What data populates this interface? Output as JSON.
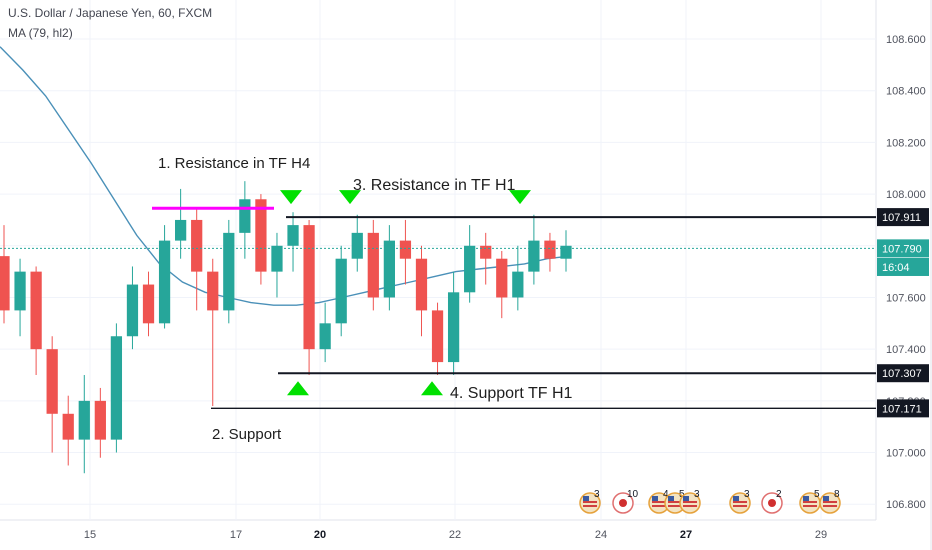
{
  "header": {
    "title": "U.S. Dollar / Japanese Yen, 60, FXCM",
    "indicator": "MA (79, hl2)"
  },
  "colors": {
    "up": "#26a69a",
    "down": "#ef5350",
    "ma": "#4a90b8",
    "resistance_h4": "#ff00ff",
    "marker": "#00e000",
    "current": "#26a69a"
  },
  "chart_data": {
    "type": "candlestick",
    "y_ticks": [
      "108.600",
      "108.400",
      "108.200",
      "108.000",
      "107.800",
      "107.600",
      "107.400",
      "107.200",
      "107.000",
      "106.800"
    ],
    "x_ticks": [
      {
        "label": "15",
        "bold": false
      },
      {
        "label": "17",
        "bold": false
      },
      {
        "label": "20",
        "bold": true
      },
      {
        "label": "22",
        "bold": false
      },
      {
        "label": "24",
        "bold": false
      },
      {
        "label": "27",
        "bold": true
      },
      {
        "label": "29",
        "bold": false
      }
    ],
    "ylim": [
      106.77,
      108.72
    ],
    "price_tags": [
      {
        "label": "107.911",
        "value": 107.911,
        "style": "dark"
      },
      {
        "label": "107.790",
        "value": 107.79,
        "style": "current"
      },
      {
        "label": "16:04",
        "value": 107.718,
        "style": "current"
      },
      {
        "label": "107.307",
        "value": 107.307,
        "style": "dark"
      },
      {
        "label": "107.171",
        "value": 107.171,
        "style": "dark"
      }
    ],
    "levels": [
      {
        "name": "resistance-h1",
        "value": 107.911
      },
      {
        "name": "support-h1",
        "value": 107.307
      },
      {
        "name": "support",
        "value": 107.171
      },
      {
        "name": "resistance-h4",
        "value": 107.945
      }
    ],
    "annotations": [
      "1. Resistance in TF H4",
      "2. Support",
      "3. Resistance in TF H1",
      "4. Support TF H1"
    ],
    "ma_series": [
      108.57,
      108.48,
      108.38,
      108.25,
      108.12,
      107.98,
      107.84,
      107.73,
      107.66,
      107.62,
      107.6,
      107.58,
      107.57,
      107.57,
      107.58,
      107.6,
      107.62,
      107.64,
      107.66,
      107.68,
      107.7,
      107.71,
      107.72,
      107.73,
      107.75,
      107.76
    ],
    "candles": [
      [
        107.76,
        107.55,
        107.88,
        107.5
      ],
      [
        107.55,
        107.7,
        107.75,
        107.45
      ],
      [
        107.7,
        107.4,
        107.72,
        107.3
      ],
      [
        107.4,
        107.15,
        107.45,
        107.0
      ],
      [
        107.15,
        107.05,
        107.22,
        106.95
      ],
      [
        107.05,
        107.2,
        107.3,
        106.92
      ],
      [
        107.2,
        107.05,
        107.25,
        106.98
      ],
      [
        107.05,
        107.45,
        107.5,
        107.0
      ],
      [
        107.45,
        107.65,
        107.72,
        107.4
      ],
      [
        107.65,
        107.5,
        107.7,
        107.45
      ],
      [
        107.5,
        107.82,
        107.88,
        107.48
      ],
      [
        107.82,
        107.9,
        108.02,
        107.75
      ],
      [
        107.9,
        107.7,
        107.95,
        107.55
      ],
      [
        107.7,
        107.55,
        107.75,
        107.18
      ],
      [
        107.55,
        107.85,
        107.9,
        107.5
      ],
      [
        107.85,
        107.98,
        108.05,
        107.75
      ],
      [
        107.98,
        107.7,
        108.0,
        107.65
      ],
      [
        107.7,
        107.8,
        107.85,
        107.6
      ],
      [
        107.8,
        107.88,
        107.93,
        107.7
      ],
      [
        107.88,
        107.4,
        107.9,
        107.3
      ],
      [
        107.4,
        107.5,
        107.58,
        107.35
      ],
      [
        107.5,
        107.75,
        107.8,
        107.45
      ],
      [
        107.75,
        107.85,
        107.92,
        107.7
      ],
      [
        107.85,
        107.6,
        107.9,
        107.55
      ],
      [
        107.6,
        107.82,
        107.88,
        107.55
      ],
      [
        107.82,
        107.75,
        107.9,
        107.65
      ],
      [
        107.75,
        107.55,
        107.8,
        107.45
      ],
      [
        107.55,
        107.35,
        107.58,
        107.3
      ],
      [
        107.35,
        107.62,
        107.7,
        107.3
      ],
      [
        107.62,
        107.8,
        107.88,
        107.58
      ],
      [
        107.8,
        107.75,
        107.85,
        107.65
      ],
      [
        107.75,
        107.6,
        107.78,
        107.52
      ],
      [
        107.6,
        107.7,
        107.8,
        107.55
      ],
      [
        107.7,
        107.82,
        107.92,
        107.65
      ],
      [
        107.82,
        107.75,
        107.85,
        107.7
      ],
      [
        107.75,
        107.8,
        107.86,
        107.7
      ]
    ]
  },
  "markers": [
    {
      "name": "resistance-h1-marker-1",
      "dir": "down"
    },
    {
      "name": "resistance-h1-marker-2",
      "dir": "down"
    },
    {
      "name": "resistance-h1-marker-3",
      "dir": "down"
    },
    {
      "name": "support-h1-marker-1",
      "dir": "up"
    },
    {
      "name": "support-h1-marker-2",
      "dir": "up"
    }
  ],
  "events": [
    {
      "flag": "us-flag-icon",
      "count": "3"
    },
    {
      "flag": "jp-flag-icon",
      "count": "10"
    },
    {
      "flag": "us-flag-icon",
      "count": "4"
    },
    {
      "flag": "us-flag-icon",
      "count": "5"
    },
    {
      "flag": "us-flag-icon",
      "count": "3"
    },
    {
      "flag": "us-flag-icon",
      "count": "3"
    },
    {
      "flag": "jp-flag-icon",
      "count": "2"
    },
    {
      "flag": "us-flag-icon",
      "count": "5"
    },
    {
      "flag": "us-flag-icon",
      "count": "8"
    }
  ]
}
